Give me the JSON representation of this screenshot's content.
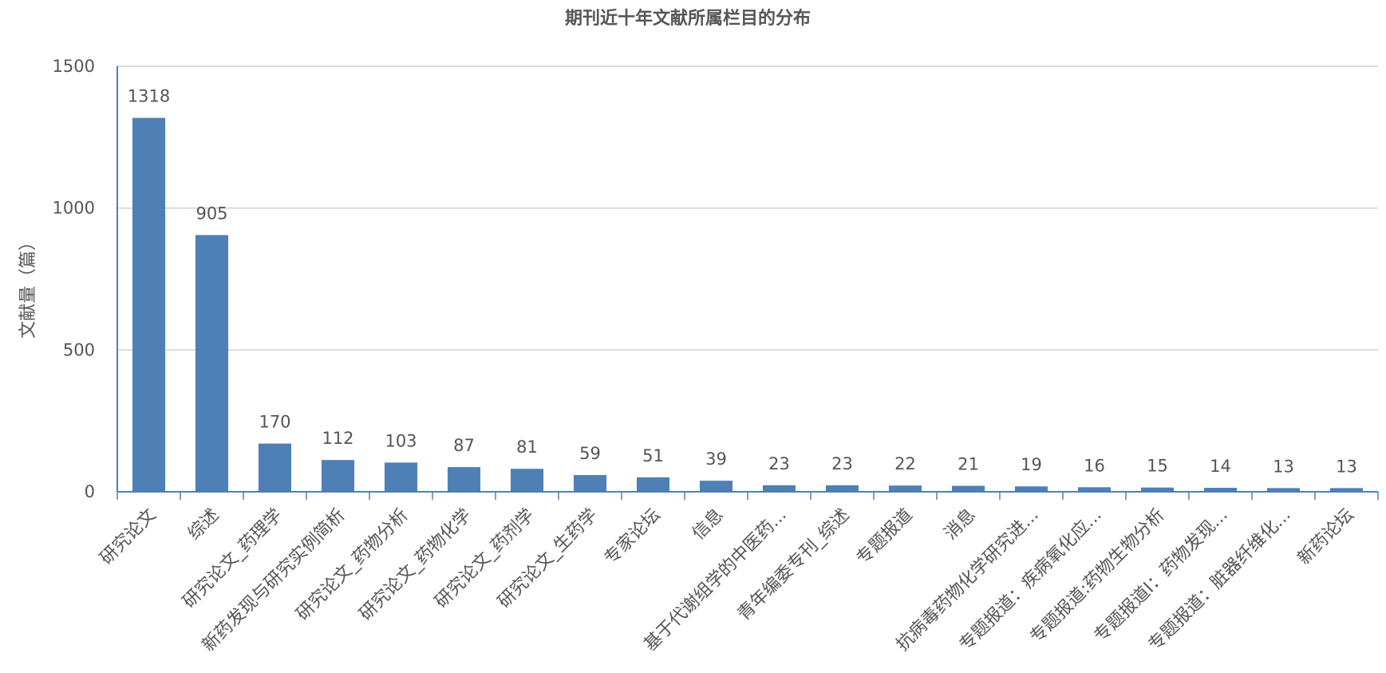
{
  "chart_data": {
    "type": "bar",
    "title": "期刊近十年文献所属栏目的分布",
    "xlabel": "",
    "ylabel": "文献量（篇）",
    "ylim": [
      0,
      1500
    ],
    "yticks": [
      0,
      500,
      1000,
      1500
    ],
    "grid": true,
    "legend": "none",
    "bar_color": "#4f80b5",
    "axis_color": "#4f80b8",
    "categories": [
      "研究论文",
      "综述",
      "研究论文_药理学",
      "新药发现与研究实例简析",
      "研究论文_药物分析",
      "研究论文_药物化学",
      "研究论文_药剂学",
      "研究论文_生药学",
      "专家论坛",
      "信息",
      "基于代谢组学的中医药...",
      "青年编委专刊_综述",
      "专题报道",
      "消息",
      "抗病毒药物化学研究进...",
      "专题报道：疾病氧化应...",
      "专题报道:药物生物分析",
      "专题报道Ⅰ：药物发现...",
      "专题报道：脏器纤维化...",
      "新药论坛"
    ],
    "values": [
      1318,
      905,
      170,
      112,
      103,
      87,
      81,
      59,
      51,
      39,
      23,
      23,
      22,
      21,
      19,
      16,
      15,
      14,
      13,
      13
    ]
  }
}
